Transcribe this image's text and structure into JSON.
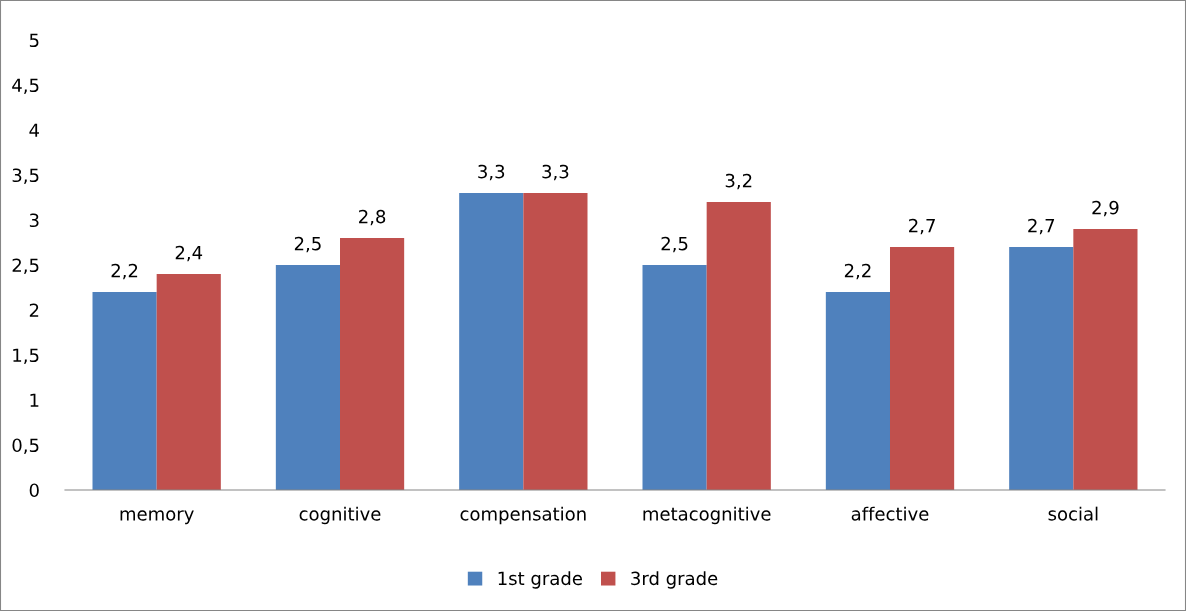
{
  "chart_data": {
    "type": "bar",
    "categories": [
      "memory",
      "cognitive",
      "compensation",
      "metacognitive",
      "affective",
      "social"
    ],
    "series": [
      {
        "name": "1st grade",
        "color": "#4f81bd",
        "values": [
          2.2,
          2.5,
          3.3,
          2.5,
          2.2,
          2.7
        ],
        "value_labels": [
          "2,2",
          "2,5",
          "3,3",
          "2,5",
          "2,2",
          "2,7"
        ]
      },
      {
        "name": "3rd grade",
        "color": "#c0504d",
        "values": [
          2.4,
          2.8,
          3.3,
          3.2,
          2.7,
          2.9
        ],
        "value_labels": [
          "2,4",
          "2,8",
          "3,3",
          "3,2",
          "2,7",
          "2,9"
        ]
      }
    ],
    "ylim": [
      0,
      5
    ],
    "yticks": [
      0,
      {
        "value": 0.5,
        "label": "0,5"
      },
      1,
      {
        "value": 1.5,
        "label": "1,5"
      },
      2,
      {
        "value": 2.5,
        "label": "2,5"
      },
      3,
      {
        "value": 3.5,
        "label": "3,5"
      },
      4,
      {
        "value": 4.5,
        "label": "4,5"
      },
      5
    ],
    "grid": false,
    "legend": "bottom"
  }
}
